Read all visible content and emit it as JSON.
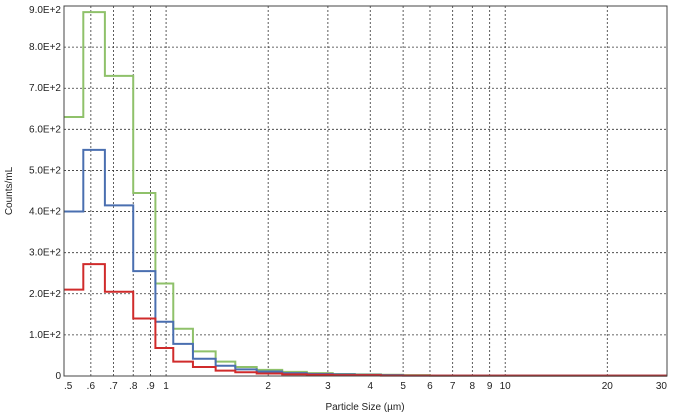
{
  "chart_data": {
    "type": "line",
    "step": true,
    "xscale": "log",
    "xlabel": "Particle Size (µm)",
    "ylabel": "Counts/mL",
    "xlim": [
      0.5,
      30
    ],
    "ylim": [
      0,
      900
    ],
    "grid": true,
    "x_ticks": [
      {
        "v": 0.5,
        "label": ".5"
      },
      {
        "v": 0.6,
        "label": ".6"
      },
      {
        "v": 0.7,
        "label": ".7"
      },
      {
        "v": 0.8,
        "label": ".8"
      },
      {
        "v": 0.9,
        "label": ".9"
      },
      {
        "v": 1,
        "label": "1"
      },
      {
        "v": 2,
        "label": "2"
      },
      {
        "v": 3,
        "label": "3"
      },
      {
        "v": 4,
        "label": "4"
      },
      {
        "v": 5,
        "label": "5"
      },
      {
        "v": 6,
        "label": "6"
      },
      {
        "v": 7,
        "label": "7"
      },
      {
        "v": 8,
        "label": "8"
      },
      {
        "v": 9,
        "label": "9"
      },
      {
        "v": 10,
        "label": "10"
      },
      {
        "v": 20,
        "label": "20"
      },
      {
        "v": 30,
        "label": "30"
      }
    ],
    "y_ticks": [
      {
        "v": 0,
        "label": "0"
      },
      {
        "v": 100,
        "label": "1.0E+2"
      },
      {
        "v": 200,
        "label": "2.0E+2"
      },
      {
        "v": 300,
        "label": "3.0E+2"
      },
      {
        "v": 400,
        "label": "4.0E+2"
      },
      {
        "v": 500,
        "label": "5.0E+2"
      },
      {
        "v": 600,
        "label": "6.0E+2"
      },
      {
        "v": 700,
        "label": "7.0E+2"
      },
      {
        "v": 800,
        "label": "8.0E+2"
      },
      {
        "v": 900,
        "label": "9.0E+2"
      }
    ],
    "bin_edges": [
      0.5,
      0.57,
      0.66,
      0.8,
      0.93,
      1.05,
      1.2,
      1.4,
      1.6,
      1.85,
      2.2,
      2.6,
      3.1,
      3.6,
      4.3,
      5,
      6,
      30
    ],
    "series": [
      {
        "color": "#8fc16a",
        "values": [
          630,
          885,
          730,
          445,
          225,
          115,
          60,
          35,
          22,
          15,
          10,
          7,
          5,
          4,
          3,
          2,
          1
        ]
      },
      {
        "color": "#4a6fb0",
        "values": [
          400,
          550,
          415,
          255,
          132,
          78,
          42,
          25,
          16,
          11,
          7,
          5,
          4,
          3,
          2,
          1,
          1
        ]
      },
      {
        "color": "#d02b2b",
        "values": [
          210,
          272,
          205,
          140,
          68,
          35,
          22,
          13,
          9,
          6,
          4,
          3,
          2,
          2,
          1,
          1,
          1
        ]
      }
    ]
  }
}
